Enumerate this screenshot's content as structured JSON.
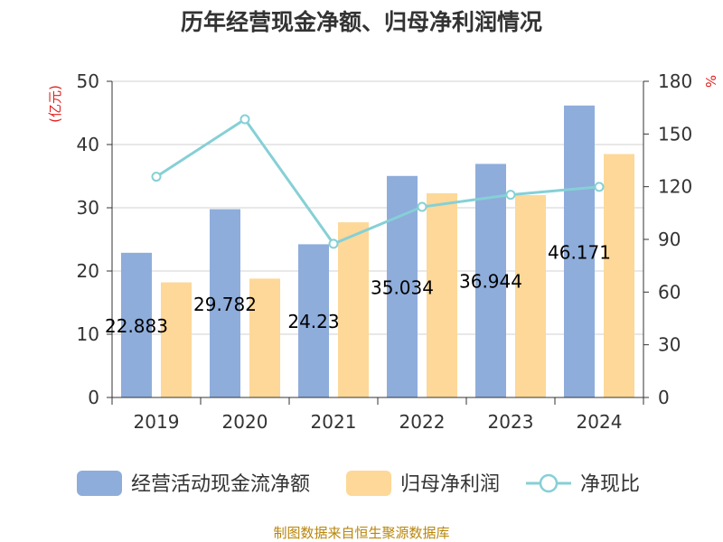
{
  "chart_data": {
    "type": "bar",
    "title": "历年经营现金净额、归母净利润情况",
    "categories": [
      "2019",
      "2020",
      "2021",
      "2022",
      "2023",
      "2024"
    ],
    "left_axis": {
      "unit_label": "(亿元)",
      "ylim": [
        0,
        50
      ],
      "ticks": [
        0,
        10,
        20,
        30,
        40,
        50
      ]
    },
    "right_axis": {
      "unit_label": "%",
      "ylim": [
        0,
        180
      ],
      "ticks": [
        0,
        30,
        60,
        90,
        120,
        150,
        180
      ]
    },
    "series": [
      {
        "name": "经营活动现金流净额",
        "type": "bar",
        "axis": "left",
        "color": "#8eaddb",
        "values": [
          22.88,
          29.78,
          24.23,
          35.03,
          36.94,
          46.17
        ],
        "labels": [
          "22.883",
          "29.782",
          "24.23",
          "35.034",
          "36.944",
          "46.171"
        ]
      },
      {
        "name": "归母净利润",
        "type": "bar",
        "axis": "left",
        "color": "#fdd898",
        "values": [
          18.2,
          18.8,
          27.7,
          32.3,
          32.0,
          38.5
        ]
      },
      {
        "name": "净现比",
        "type": "line",
        "axis": "right",
        "color": "#85d0d6",
        "values": [
          125.7,
          158.4,
          87.5,
          108.5,
          115.4,
          119.9
        ]
      }
    ],
    "grid": true,
    "legend_position": "bottom"
  },
  "source": "制图数据来自恒生聚源数据库"
}
